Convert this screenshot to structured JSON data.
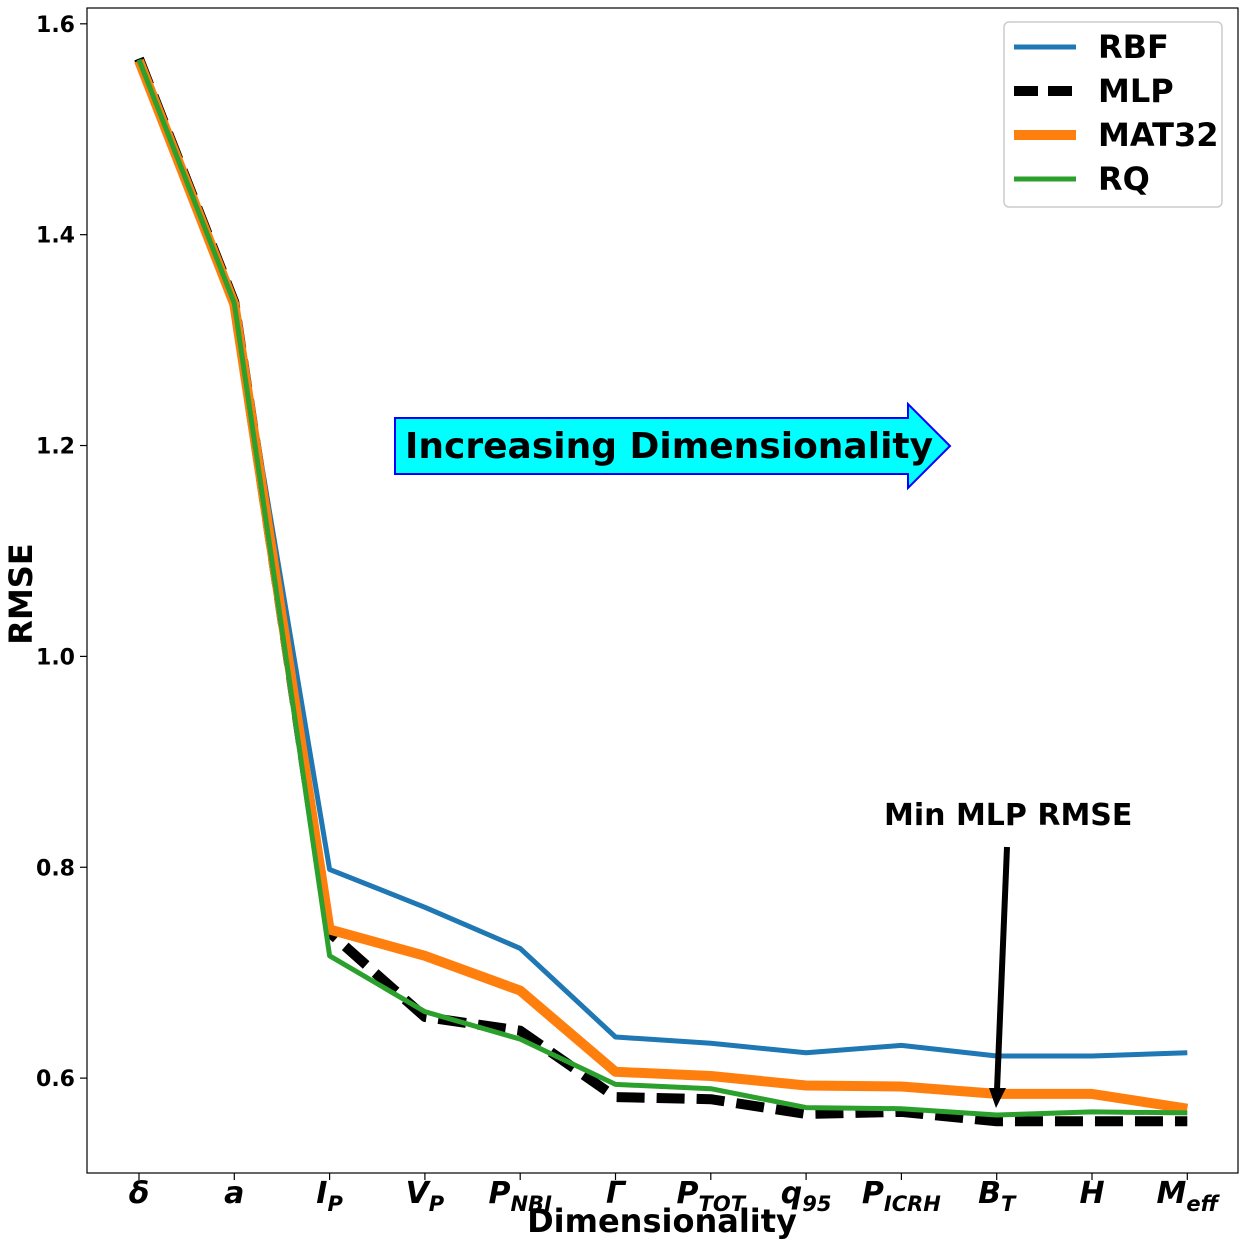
{
  "chart_data": {
    "type": "line",
    "xlabel": "Dimensionality",
    "ylabel": "RMSE",
    "ylim": [
      0.51,
      1.615
    ],
    "yticks": [
      "0.6",
      "0.8",
      "1.0",
      "1.2",
      "1.4",
      "1.6"
    ],
    "categories": [
      {
        "base": "δ",
        "sub": ""
      },
      {
        "base": "a",
        "sub": ""
      },
      {
        "base": "I",
        "sub": "P"
      },
      {
        "base": "V",
        "sub": "P"
      },
      {
        "base": "P",
        "sub": "NBI"
      },
      {
        "base": "Γ",
        "sub": ""
      },
      {
        "base": "P",
        "sub": "TOT"
      },
      {
        "base": "q",
        "sub": "95"
      },
      {
        "base": "P",
        "sub": "ICRH"
      },
      {
        "base": "B",
        "sub": "T"
      },
      {
        "base": "H",
        "sub": ""
      },
      {
        "base": "M",
        "sub": "eff"
      }
    ],
    "series": [
      {
        "name": "RBF",
        "color": "#1f77b4",
        "style": "solid",
        "width": 5,
        "values": [
          1.567,
          1.336,
          0.798,
          0.762,
          0.723,
          0.639,
          0.633,
          0.624,
          0.631,
          0.621,
          0.621,
          0.624
        ]
      },
      {
        "name": "MLP",
        "color": "#000000",
        "style": "dashed",
        "width": 10,
        "values": [
          1.567,
          1.336,
          0.738,
          0.658,
          0.645,
          0.582,
          0.58,
          0.566,
          0.568,
          0.559,
          0.559,
          0.559
        ]
      },
      {
        "name": "MAT32",
        "color": "#ff7f0e",
        "style": "solid",
        "width": 10,
        "values": [
          1.565,
          1.334,
          0.741,
          0.716,
          0.683,
          0.606,
          0.602,
          0.593,
          0.592,
          0.585,
          0.585,
          0.571
        ]
      },
      {
        "name": "RQ",
        "color": "#2ca02c",
        "style": "solid",
        "width": 5,
        "values": [
          1.566,
          1.335,
          0.716,
          0.663,
          0.637,
          0.594,
          0.59,
          0.572,
          0.571,
          0.565,
          0.568,
          0.567
        ]
      }
    ],
    "legend_position": "top-right",
    "grid": false,
    "annotations": {
      "banner": {
        "text": "Increasing Dimensionality",
        "fill": "#00ffff",
        "stroke": "#0000ff"
      },
      "arrow_note": {
        "text": "Min MLP RMSE",
        "target_category": 9,
        "target_value": 0.566
      }
    }
  }
}
